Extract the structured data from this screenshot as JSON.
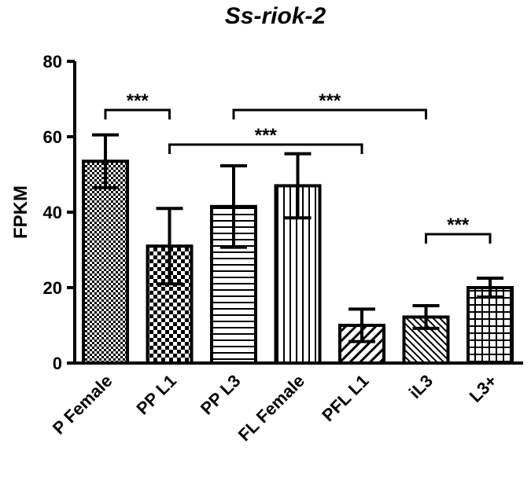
{
  "chart_data": {
    "type": "bar",
    "title": "Ss-riok-2",
    "ylabel": "FPKM",
    "xlabel": "",
    "ylim": [
      0,
      80
    ],
    "yticks": [
      "0",
      "20",
      "40",
      "60",
      "80"
    ],
    "categories": [
      "P Female",
      "PP L1",
      "PP L3",
      "FL Female",
      "PFL L1",
      "iL3",
      "L3+"
    ],
    "values": [
      53.5,
      31,
      41.5,
      47,
      10,
      12.2,
      20
    ],
    "error": [
      7,
      10,
      10.8,
      8.5,
      4.3,
      3,
      2.5
    ],
    "patterns": [
      "checker-fine",
      "checker-coarse",
      "horizontal-lines",
      "vertical-lines",
      "diagonal-coarse",
      "diagonal-fine",
      "grid"
    ],
    "grid": false,
    "significance": [
      {
        "from": 0,
        "to": 1,
        "label": "***"
      },
      {
        "from": 1,
        "to": 4,
        "label": "***"
      },
      {
        "from": 2,
        "to": 5,
        "label": "***"
      },
      {
        "from": 5,
        "to": 6,
        "label": "***"
      }
    ]
  }
}
